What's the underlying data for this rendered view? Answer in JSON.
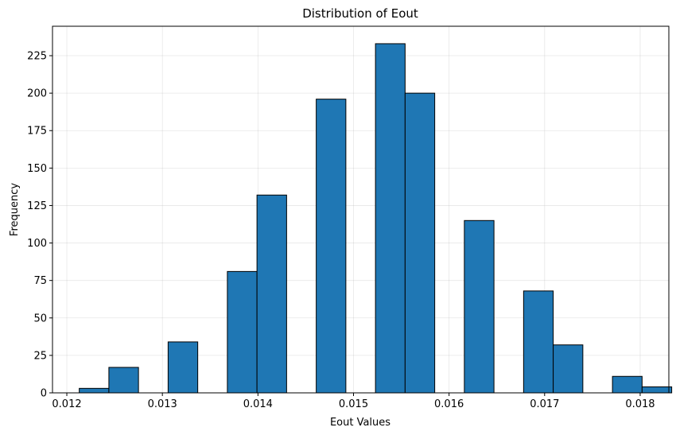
{
  "chart_data": {
    "type": "bar",
    "title": "Distribution of Eout",
    "xlabel": "Eout Values",
    "ylabel": "Frequency",
    "xlim": [
      0.01185,
      0.0183
    ],
    "ylim": [
      0,
      244.65
    ],
    "grid": true,
    "bar_color": "#1f77b4",
    "edge_color": "#000000",
    "x_ticks": [
      0.012,
      0.013,
      0.014,
      0.015,
      0.016,
      0.017,
      0.018
    ],
    "x_tick_labels": [
      "0.012",
      "0.013",
      "0.014",
      "0.015",
      "0.016",
      "0.017",
      "0.018"
    ],
    "y_ticks": [
      0,
      25,
      50,
      75,
      100,
      125,
      150,
      175,
      200,
      225
    ],
    "y_tick_labels": [
      "0",
      "25",
      "50",
      "75",
      "100",
      "125",
      "150",
      "175",
      "200",
      "225"
    ],
    "bins": [
      {
        "x0": 0.01213,
        "x1": 0.01244,
        "count": 3
      },
      {
        "x0": 0.01244,
        "x1": 0.01275,
        "count": 17
      },
      {
        "x0": 0.01275,
        "x1": 0.01306,
        "count": 0
      },
      {
        "x0": 0.01306,
        "x1": 0.01337,
        "count": 34
      },
      {
        "x0": 0.01337,
        "x1": 0.01368,
        "count": 0
      },
      {
        "x0": 0.01368,
        "x1": 0.01399,
        "count": 81
      },
      {
        "x0": 0.01399,
        "x1": 0.0143,
        "count": 132
      },
      {
        "x0": 0.0143,
        "x1": 0.01461,
        "count": 0
      },
      {
        "x0": 0.01461,
        "x1": 0.01492,
        "count": 196
      },
      {
        "x0": 0.01492,
        "x1": 0.01523,
        "count": 0
      },
      {
        "x0": 0.01523,
        "x1": 0.01554,
        "count": 233
      },
      {
        "x0": 0.01554,
        "x1": 0.01585,
        "count": 200
      },
      {
        "x0": 0.01585,
        "x1": 0.01616,
        "count": 0
      },
      {
        "x0": 0.01616,
        "x1": 0.01647,
        "count": 115
      },
      {
        "x0": 0.01647,
        "x1": 0.01678,
        "count": 0
      },
      {
        "x0": 0.01678,
        "x1": 0.01709,
        "count": 68
      },
      {
        "x0": 0.01709,
        "x1": 0.0174,
        "count": 32
      },
      {
        "x0": 0.0174,
        "x1": 0.01771,
        "count": 0
      },
      {
        "x0": 0.01771,
        "x1": 0.01802,
        "count": 11
      },
      {
        "x0": 0.01802,
        "x1": 0.01833,
        "count": 4
      }
    ]
  }
}
